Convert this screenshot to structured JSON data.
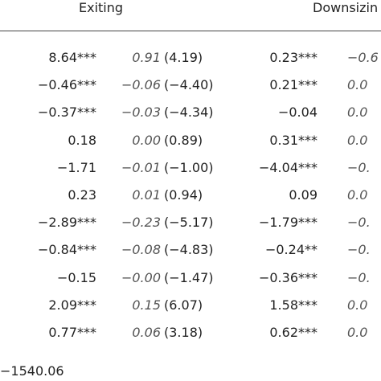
{
  "header": {
    "col_group_1": "Exiting",
    "col_group_2": "Downsizin"
  },
  "rows": [
    {
      "est1": "8.64***",
      "mfx1": "0.91",
      "t1": "(4.19)",
      "est2": "0.23***",
      "mfx2": "−0.6"
    },
    {
      "est1": "−0.46***",
      "mfx1": "−0.06",
      "t1": "(−4.40)",
      "est2": "0.21***",
      "mfx2": "0.0"
    },
    {
      "est1": "−0.37***",
      "mfx1": "−0.03",
      "t1": "(−4.34)",
      "est2": "−0.04",
      "mfx2": "0.0"
    },
    {
      "est1": "0.18",
      "mfx1": "0.00",
      "t1": "(0.89)",
      "est2": "0.31***",
      "mfx2": "0.0"
    },
    {
      "est1": "−1.71",
      "mfx1": "−0.01",
      "t1": "(−1.00)",
      "est2": "−4.04***",
      "mfx2": "−0."
    },
    {
      "est1": "0.23",
      "mfx1": "0.01",
      "t1": "(0.94)",
      "est2": "0.09",
      "mfx2": "0.0"
    },
    {
      "est1": "−2.89***",
      "mfx1": "−0.23",
      "t1": "(−5.17)",
      "est2": "−1.79***",
      "mfx2": "−0."
    },
    {
      "est1": "−0.84***",
      "mfx1": "−0.08",
      "t1": "(−4.83)",
      "est2": "−0.24**",
      "mfx2": "−0."
    },
    {
      "est1": "−0.15",
      "mfx1": "−0.00",
      "t1": "(−1.47)",
      "est2": "−0.36***",
      "mfx2": "−0."
    },
    {
      "est1": "2.09***",
      "mfx1": "0.15",
      "t1": "(6.07)",
      "est2": "1.58***",
      "mfx2": "0.0"
    },
    {
      "est1": "0.77***",
      "mfx1": "0.06",
      "t1": "(3.18)",
      "est2": "0.62***",
      "mfx2": "0.0"
    }
  ],
  "footer": {
    "log_likelihood": "−1540.06"
  }
}
